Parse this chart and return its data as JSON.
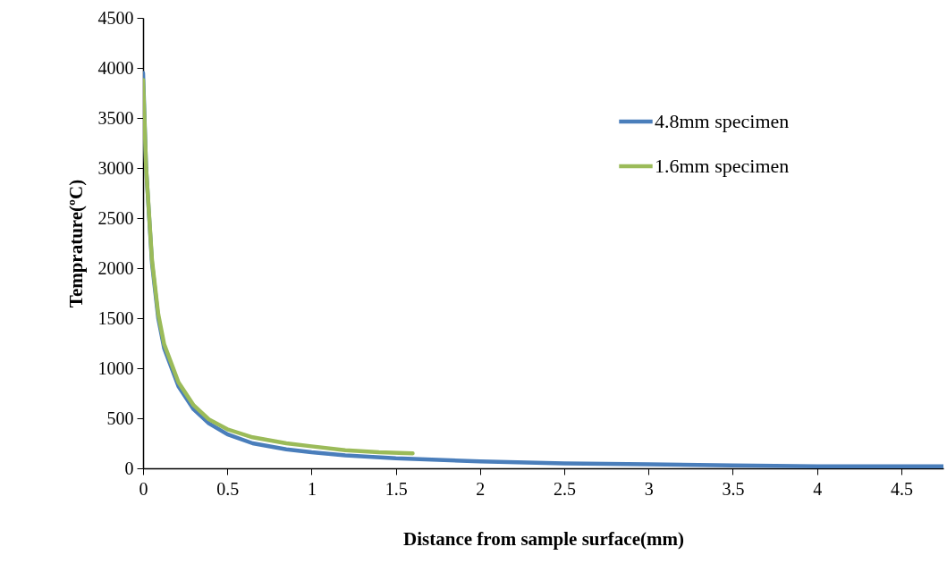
{
  "chart_data": {
    "type": "line",
    "xlabel": "Distance from sample surface(mm)",
    "ylabel": "Temprature(ºC)",
    "xlim": [
      0,
      4.75
    ],
    "xticks": [
      0,
      0.5,
      1,
      1.5,
      2,
      2.5,
      3,
      3.5,
      4,
      4.5
    ],
    "ylim": [
      0,
      4500
    ],
    "yticks": [
      0,
      500,
      1000,
      1500,
      2000,
      2500,
      3000,
      3500,
      4000,
      4500
    ],
    "legend": "top right",
    "series": [
      {
        "name": "4.8mm specimen",
        "color": "#4a7ebb",
        "x": [
          0,
          0.018,
          0.053,
          0.09,
          0.125,
          0.21,
          0.3,
          0.39,
          0.5,
          0.65,
          0.85,
          1,
          1.2,
          1.5,
          2,
          2.5,
          3,
          3.5,
          4,
          4.75
        ],
        "values": [
          3950,
          3000,
          2050,
          1500,
          1200,
          820,
          590,
          450,
          340,
          250,
          190,
          160,
          130,
          100,
          70,
          50,
          40,
          30,
          20,
          20
        ]
      },
      {
        "name": "1.6mm specimen",
        "color": "#9bbb59",
        "x": [
          0,
          0.018,
          0.053,
          0.09,
          0.125,
          0.21,
          0.3,
          0.39,
          0.5,
          0.65,
          0.85,
          1,
          1.2,
          1.4,
          1.6
        ],
        "values": [
          3880,
          3000,
          2080,
          1540,
          1240,
          860,
          630,
          490,
          390,
          310,
          250,
          220,
          180,
          160,
          150
        ]
      }
    ]
  }
}
